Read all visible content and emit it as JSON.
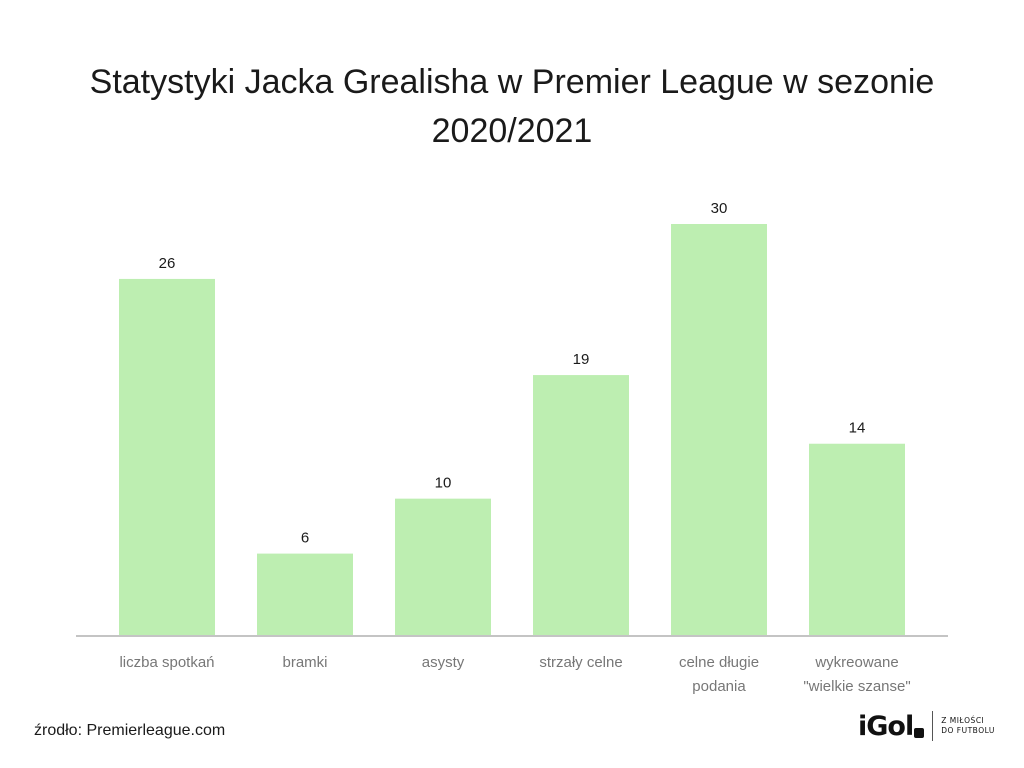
{
  "chart_data": {
    "type": "bar",
    "title": "Statystyki Jacka Grealisha w Premier League w sezonie 2020/2021",
    "categories": [
      [
        "liczba spotkań"
      ],
      [
        "bramki"
      ],
      [
        "asysty"
      ],
      [
        "strzały celne"
      ],
      [
        "celne długie",
        "podania"
      ],
      [
        "wykreowane",
        "\"wielkie szanse\""
      ]
    ],
    "values": [
      26,
      6,
      10,
      19,
      30,
      14
    ],
    "xlabel": "",
    "ylabel": "",
    "ylim": [
      0,
      30
    ],
    "grid": false,
    "legend": "none",
    "colors": {
      "bar": "#bdeeb1",
      "axis": "#c4c4c4",
      "text": "#1a1a1a",
      "tick_text": "#777777"
    }
  },
  "source": "źrodło: Premierleague.com",
  "logo": {
    "wordmark": "iGol",
    "tagline": [
      "Z MIŁOŚCI",
      "DO FUTBOLU"
    ]
  }
}
